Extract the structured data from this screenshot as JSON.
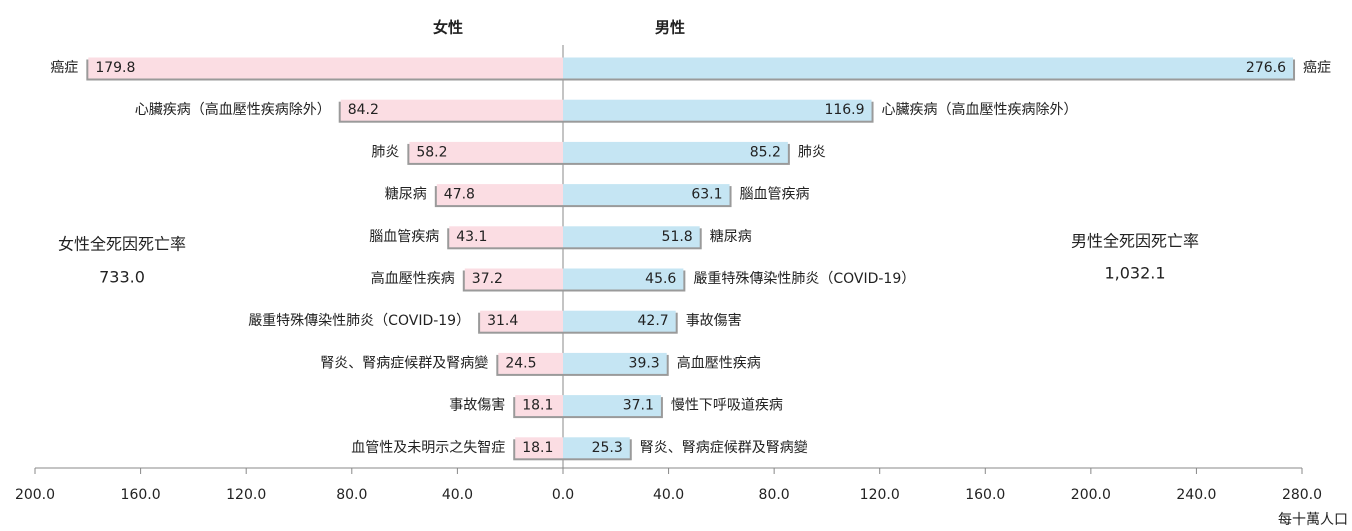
{
  "chart_data": {
    "type": "butterfly",
    "x_label": "每十萬人口",
    "female": {
      "name": "女性",
      "color": "#fbdde3",
      "categories": [
        "癌症",
        "心臟疾病（高血壓性疾病除外）",
        "肺炎",
        "糖尿病",
        "腦血管疾病",
        "高血壓性疾病",
        "嚴重特殊傳染性肺炎（COVID-19）",
        "腎炎、腎病症候群及腎病變",
        "事故傷害",
        "血管性及未明示之失智症"
      ],
      "values": [
        179.8,
        84.2,
        58.2,
        47.8,
        43.1,
        37.2,
        31.4,
        24.5,
        18.1,
        18.1
      ],
      "total_label": "女性全死因死亡率",
      "total": "733.0",
      "xlim": [
        0,
        200
      ],
      "xticks": [
        {
          "value": 200,
          "label": "200.0"
        },
        {
          "value": 160,
          "label": "160.0"
        },
        {
          "value": 120,
          "label": "120.0"
        },
        {
          "value": 80,
          "label": "80.0"
        },
        {
          "value": 40,
          "label": "40.0"
        }
      ]
    },
    "male": {
      "name": "男性",
      "color": "#c5e5f3",
      "categories": [
        "癌症",
        "心臟疾病（高血壓性疾病除外）",
        "肺炎",
        "腦血管疾病",
        "糖尿病",
        "嚴重特殊傳染性肺炎（COVID-19）",
        "事故傷害",
        "高血壓性疾病",
        "慢性下呼吸道疾病",
        "腎炎、腎病症候群及腎病變"
      ],
      "values": [
        276.6,
        116.9,
        85.2,
        63.1,
        51.8,
        45.6,
        42.7,
        39.3,
        37.1,
        25.3
      ],
      "total_label": "男性全死因死亡率",
      "total": "1,032.1",
      "xlim": [
        0,
        280
      ],
      "xticks": [
        {
          "value": 0,
          "label": "0.0"
        },
        {
          "value": 40,
          "label": "40.0"
        },
        {
          "value": 80,
          "label": "80.0"
        },
        {
          "value": 120,
          "label": "120.0"
        },
        {
          "value": 160,
          "label": "160.0"
        },
        {
          "value": 200,
          "label": "200.0"
        },
        {
          "value": 240,
          "label": "240.0"
        },
        {
          "value": 280,
          "label": "280.0"
        }
      ]
    }
  }
}
